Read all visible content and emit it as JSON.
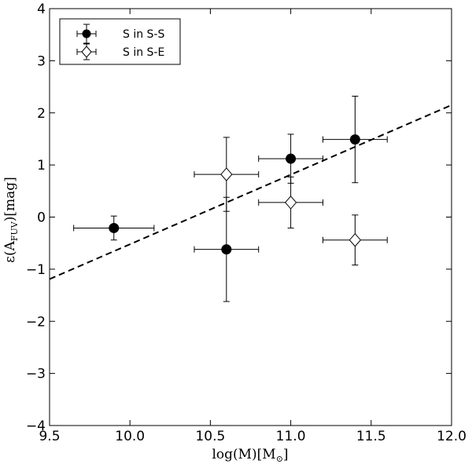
{
  "chart_data": {
    "type": "scatter",
    "xlabel": "log(M)[M",
    "xlabel_sub": "⊙",
    "xlabel_end": "]",
    "ylabel": "ε(A",
    "ylabel_sub": "FUV",
    "ylabel_end": ")[mag]",
    "xlim": [
      9.5,
      12.0
    ],
    "ylim": [
      -4,
      4
    ],
    "xticks": [
      9.5,
      10.0,
      10.5,
      11.0,
      11.5,
      12.0
    ],
    "xtick_labels": [
      "9.5",
      "10.0",
      "10.5",
      "11.0",
      "11.5",
      "12.0"
    ],
    "yticks": [
      -4,
      -3,
      -2,
      -1,
      0,
      1,
      2,
      3,
      4
    ],
    "ytick_labels": [
      "−4",
      "−3",
      "−2",
      "−1",
      "0",
      "1",
      "2",
      "3",
      "4"
    ],
    "grid": false,
    "legend_position": "top-left",
    "series": [
      {
        "name": "S in S-S",
        "marker": "filled-circle",
        "color": "#000000",
        "points": [
          {
            "x": 9.9,
            "y": -0.21,
            "xerr": 0.25,
            "yerr": 0.23
          },
          {
            "x": 10.6,
            "y": -0.62,
            "xerr": 0.2,
            "yerr": 1.0
          },
          {
            "x": 11.0,
            "y": 1.12,
            "xerr": 0.2,
            "yerr": 0.47
          },
          {
            "x": 11.4,
            "y": 1.49,
            "xerr": 0.2,
            "yerr": 0.83
          }
        ]
      },
      {
        "name": "S in S-E",
        "marker": "open-diamond",
        "color": "#000000",
        "points": [
          {
            "x": 10.6,
            "y": 0.82,
            "xerr": 0.2,
            "yerr": 0.71
          },
          {
            "x": 11.0,
            "y": 0.28,
            "xerr": 0.2,
            "yerr": 0.49
          },
          {
            "x": 11.4,
            "y": -0.44,
            "xerr": 0.2,
            "yerr": 0.48
          }
        ]
      }
    ],
    "fit_line": {
      "style": "dashed",
      "x": [
        9.5,
        12.0
      ],
      "y": [
        -1.19,
        2.15
      ]
    }
  }
}
